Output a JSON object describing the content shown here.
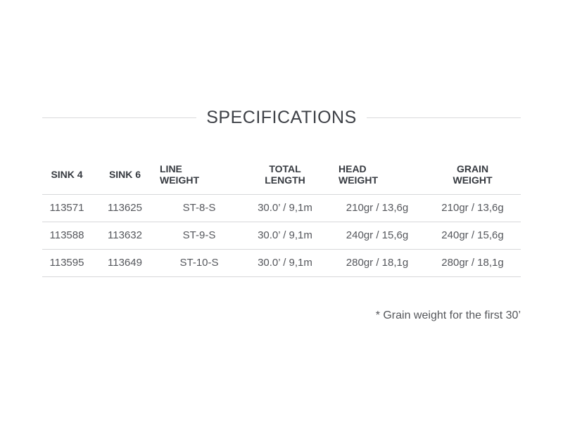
{
  "section": {
    "title": "SPECIFICATIONS"
  },
  "table": {
    "columns": [
      {
        "id": "sink-4",
        "label": "SINK 4",
        "lines": [
          "SINK 4"
        ]
      },
      {
        "id": "sink-6",
        "label": "SINK 6",
        "lines": [
          "SINK 6"
        ]
      },
      {
        "id": "line-weight",
        "label": "LINE WEIGHT",
        "lines": [
          "LINE",
          "WEIGHT"
        ]
      },
      {
        "id": "total-length",
        "label": "TOTAL LENGTH",
        "lines": [
          "TOTAL",
          "LENGTH"
        ]
      },
      {
        "id": "head-weight",
        "label": "HEAD WEIGHT",
        "lines": [
          "HEAD",
          "WEIGHT"
        ]
      },
      {
        "id": "grain-weight",
        "label": "GRAIN WEIGHT",
        "lines": [
          "GRAIN",
          "WEIGHT"
        ]
      }
    ],
    "rows": [
      [
        "113571",
        "113625",
        "ST-8-S",
        "30.0’ / 9,1m",
        "210gr / 13,6g",
        "210gr / 13,6g"
      ],
      [
        "113588",
        "113632",
        "ST-9-S",
        "30.0’ / 9,1m",
        "240gr / 15,6g",
        "240gr / 15,6g"
      ],
      [
        "113595",
        "113649",
        "ST-10-S",
        "30.0’ / 9,1m",
        "280gr / 18,1g",
        "280gr / 18,1g"
      ]
    ]
  },
  "footnote": "* Grain weight for the first 30’",
  "colors": {
    "title_text": "#3e4147",
    "header_text": "#363a40",
    "body_text": "#55575c",
    "rule_gray": "#d9dadb",
    "background": "#ffffff"
  }
}
